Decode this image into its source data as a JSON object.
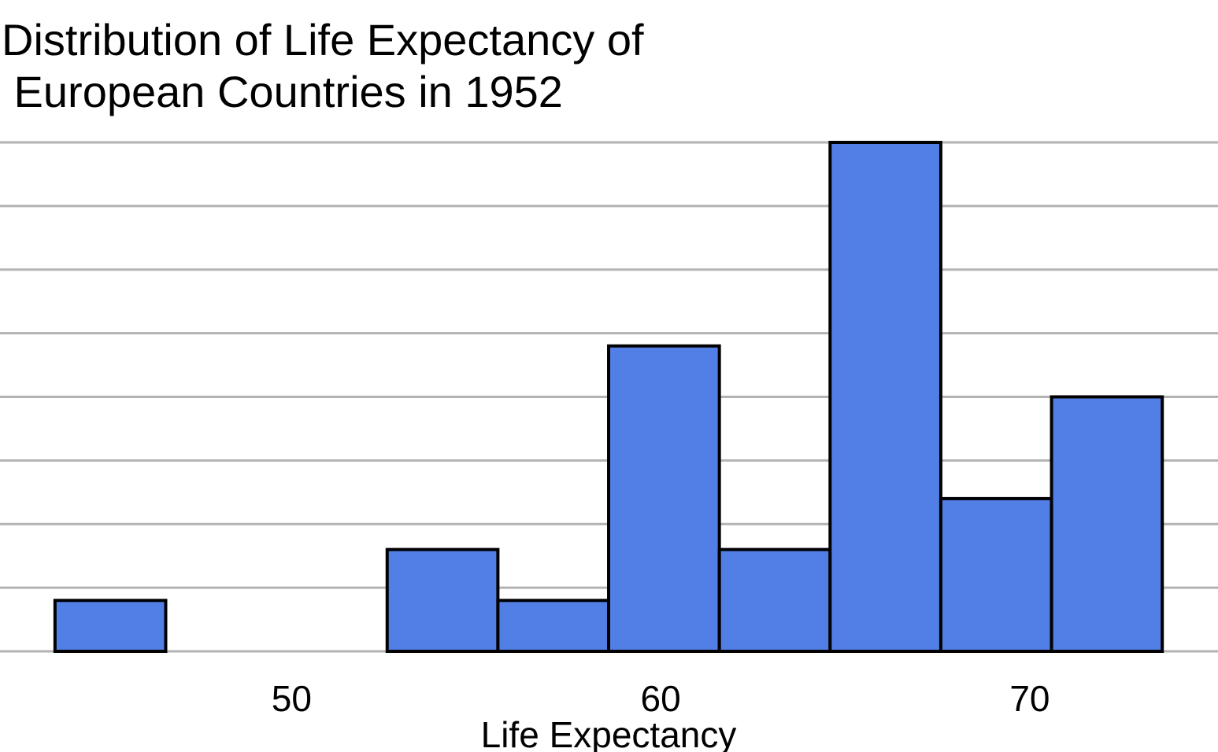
{
  "chart_data": {
    "type": "bar",
    "title": "Distribution of Life Expectancy of\n European Countries in 1952",
    "xlabel": "Life Expectancy",
    "ylabel": "",
    "bins": [
      [
        43.59,
        46.59
      ],
      [
        46.59,
        49.59
      ],
      [
        49.59,
        52.59
      ],
      [
        52.59,
        55.59
      ],
      [
        55.59,
        58.59
      ],
      [
        58.59,
        61.59
      ],
      [
        61.59,
        64.59
      ],
      [
        64.59,
        67.59
      ],
      [
        67.59,
        70.59
      ],
      [
        70.59,
        73.59
      ]
    ],
    "values": [
      1,
      0,
      0,
      2,
      1,
      6,
      2,
      10,
      3,
      5
    ],
    "xlim": [
      42.1,
      75.1
    ],
    "ylim": [
      0,
      10
    ],
    "x_ticks": [
      50,
      60,
      70
    ],
    "y_gridlines": [
      0,
      1.25,
      2.5,
      3.75,
      5,
      6.25,
      7.5,
      8.75,
      10
    ],
    "grid": true,
    "show_y_tick_labels": false,
    "bar_color": "#527fe6",
    "bar_edge_color": "#000000",
    "grid_color": "#b3b3b3"
  }
}
